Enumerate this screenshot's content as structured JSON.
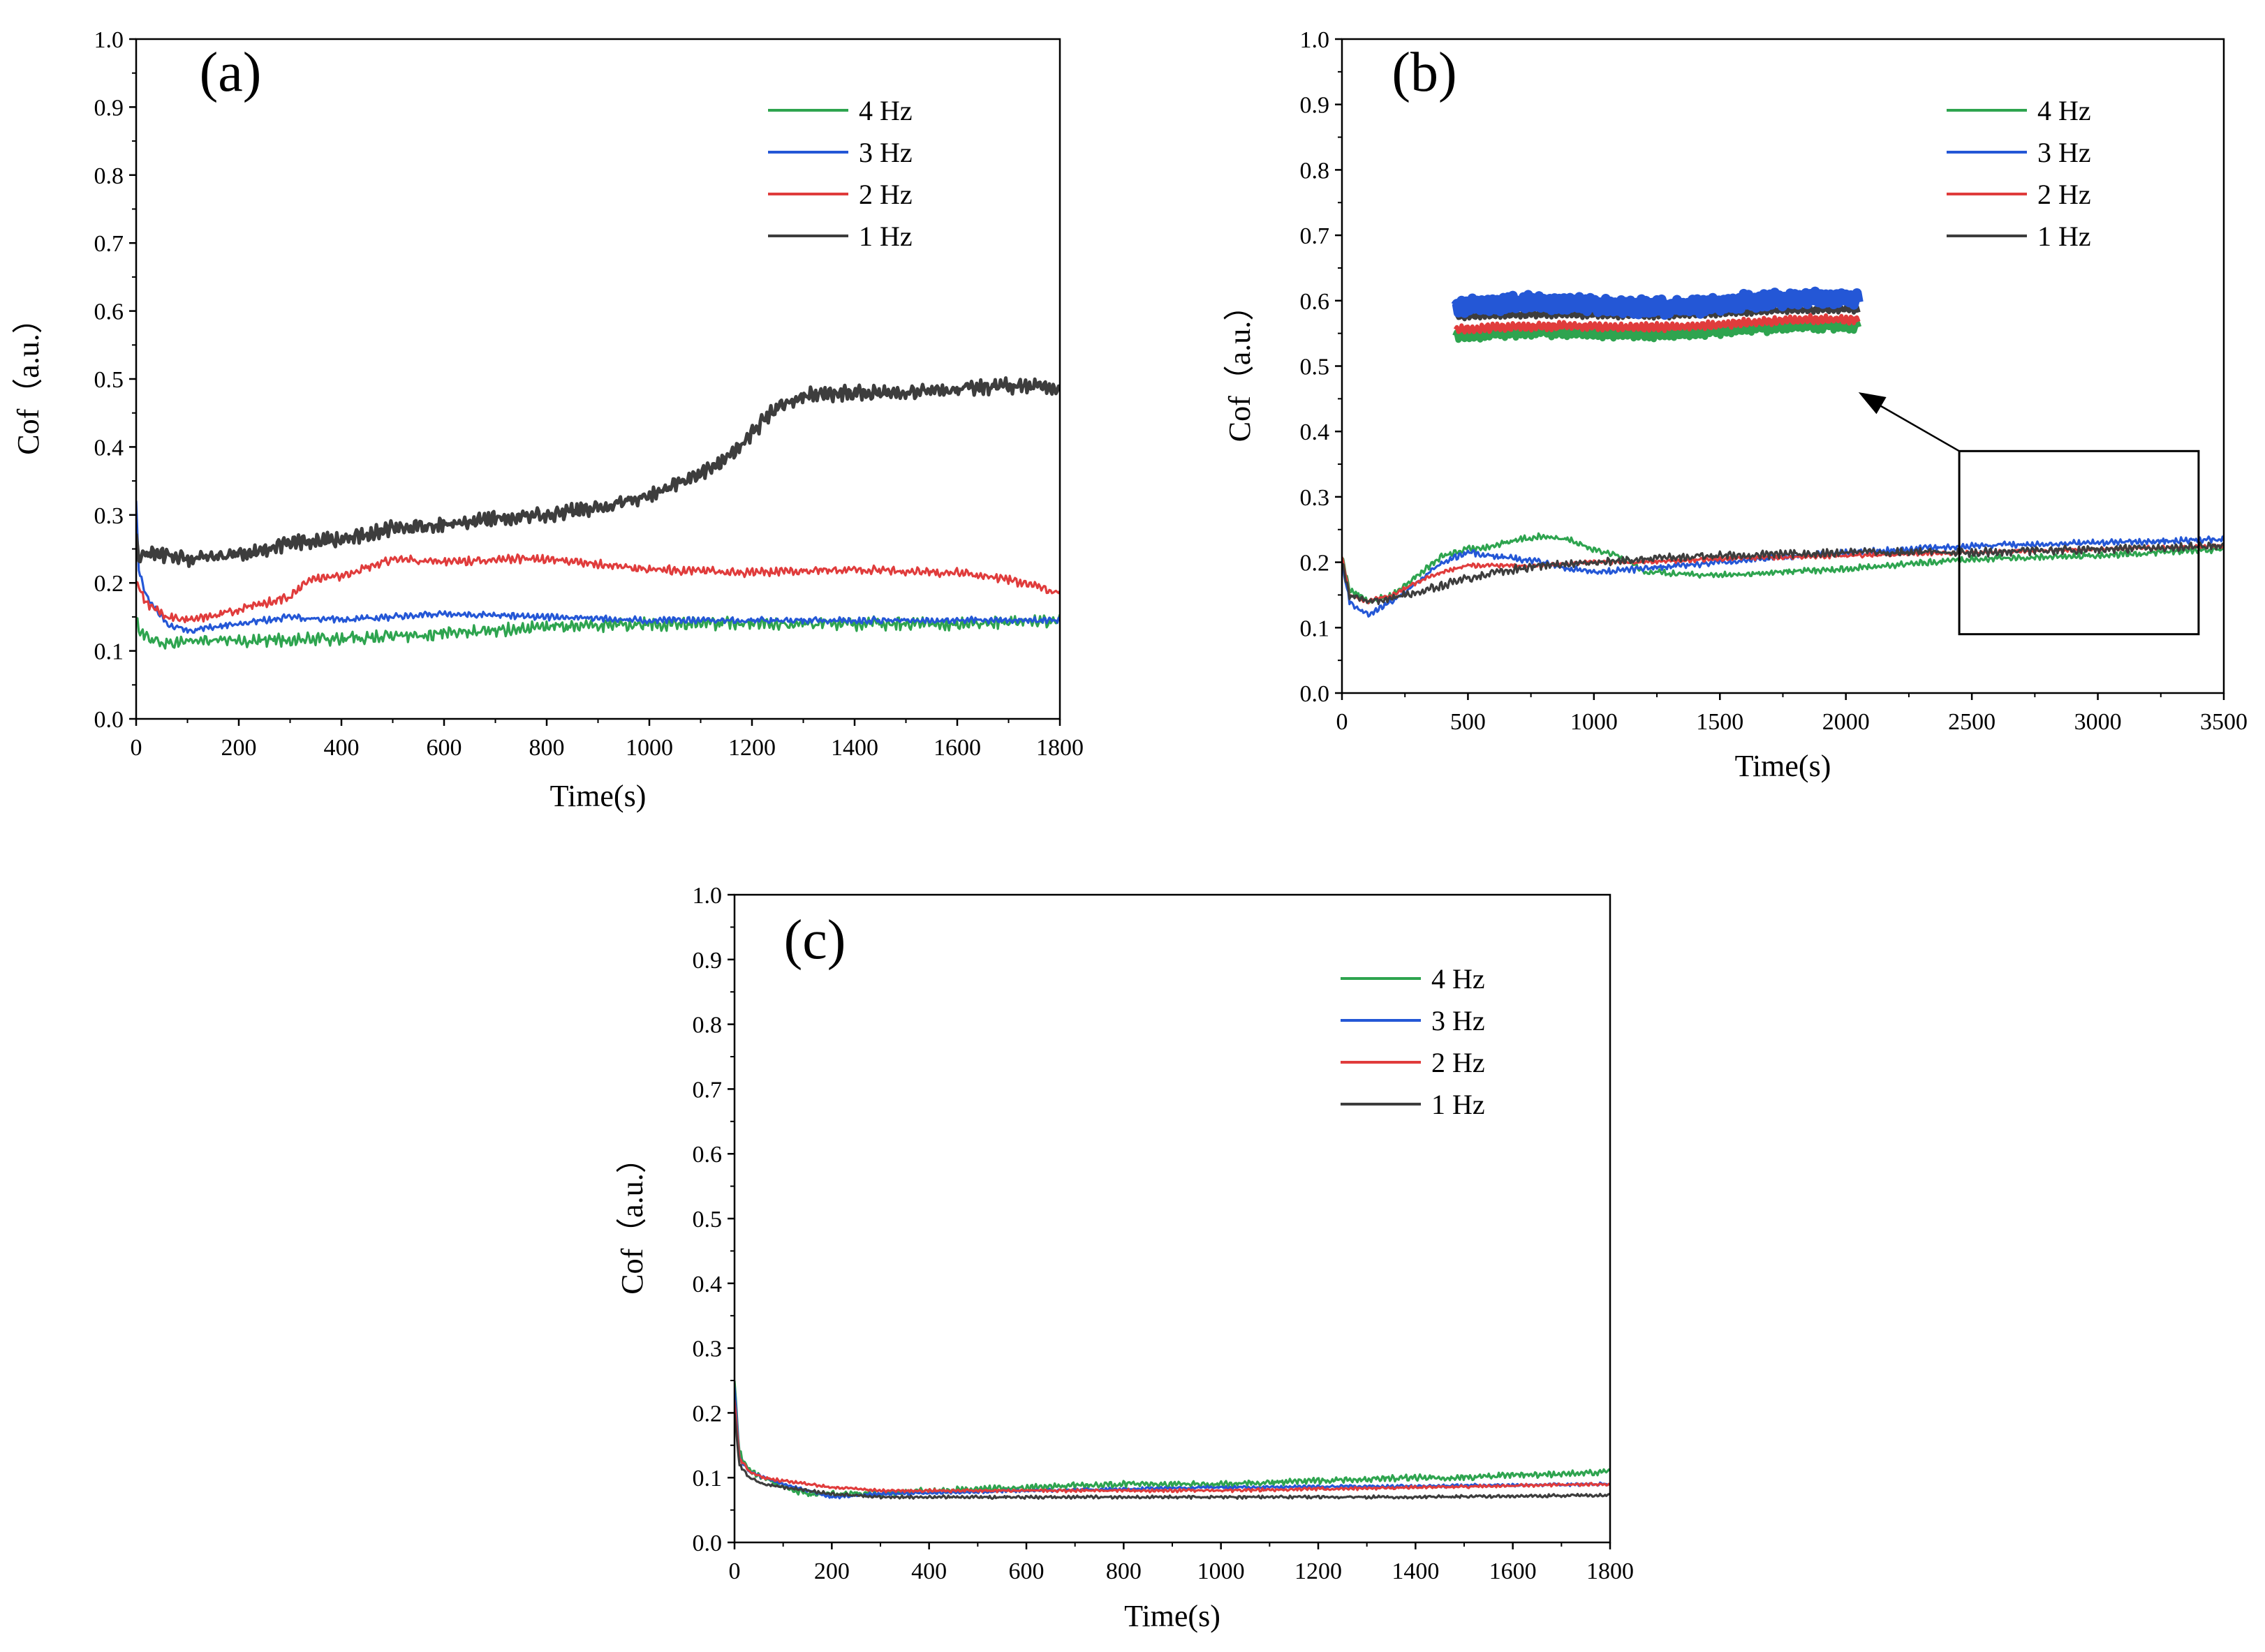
{
  "figure": {
    "colors": {
      "4 Hz": "#2ea44f",
      "3 Hz": "#2457d6",
      "2 Hz": "#e03c3c",
      "1 Hz": "#3d3d3d"
    }
  },
  "chart_data": [
    {
      "id": "a",
      "type": "line",
      "panel_label": "(a)",
      "title": "",
      "xlabel": "Time(s)",
      "ylabel": "Cof（a.u.）",
      "xlim": [
        0,
        1800
      ],
      "ylim": [
        0,
        1.0
      ],
      "xticks": [
        0,
        200,
        400,
        600,
        800,
        1000,
        1200,
        1400,
        1600,
        1800
      ],
      "xtick_labels": [
        "0",
        "200",
        "400",
        "600",
        "800",
        "1000",
        "1200",
        "1400",
        "1600",
        "1800"
      ],
      "yticks": [
        0.0,
        0.1,
        0.2,
        0.3,
        0.4,
        0.5,
        0.6,
        0.7,
        0.8,
        0.9,
        1.0
      ],
      "ytick_labels": [
        "0.0",
        "0.1",
        "0.2",
        "0.3",
        "0.4",
        "0.5",
        "0.6",
        "0.7",
        "0.8",
        "0.9",
        "1.0"
      ],
      "legend_position": "top-right",
      "series": [
        {
          "name": "4 Hz",
          "color": "#2ea44f",
          "noise": 0.006,
          "x": [
            0,
            20,
            60,
            100,
            200,
            400,
            600,
            800,
            1000,
            1200,
            1400,
            1600,
            1800
          ],
          "y": [
            0.14,
            0.12,
            0.11,
            0.115,
            0.115,
            0.118,
            0.125,
            0.135,
            0.14,
            0.14,
            0.14,
            0.14,
            0.145
          ]
        },
        {
          "name": "3 Hz",
          "color": "#2457d6",
          "noise": 0.003,
          "x": [
            0,
            5,
            20,
            60,
            100,
            150,
            200,
            300,
            400,
            600,
            800,
            1000,
            1200,
            1400,
            1800
          ],
          "y": [
            0.32,
            0.22,
            0.18,
            0.14,
            0.13,
            0.135,
            0.14,
            0.15,
            0.145,
            0.155,
            0.15,
            0.145,
            0.145,
            0.145,
            0.145
          ]
        },
        {
          "name": "2 Hz",
          "color": "#e03c3c",
          "noise": 0.004,
          "x": [
            0,
            20,
            60,
            100,
            200,
            300,
            340,
            400,
            500,
            600,
            700,
            800,
            1000,
            1200,
            1400,
            1600,
            1700,
            1800
          ],
          "y": [
            0.2,
            0.17,
            0.15,
            0.145,
            0.16,
            0.18,
            0.205,
            0.21,
            0.235,
            0.23,
            0.235,
            0.235,
            0.22,
            0.215,
            0.22,
            0.215,
            0.205,
            0.185
          ]
        },
        {
          "name": "1 Hz",
          "color": "#3d3d3d",
          "noise": 0.007,
          "x": [
            0,
            5,
            30,
            100,
            200,
            300,
            400,
            500,
            600,
            700,
            800,
            900,
            1000,
            1100,
            1150,
            1200,
            1250,
            1300,
            1400,
            1500,
            1600,
            1700,
            1800
          ],
          "y": [
            0.27,
            0.24,
            0.245,
            0.235,
            0.24,
            0.26,
            0.265,
            0.28,
            0.285,
            0.295,
            0.3,
            0.31,
            0.33,
            0.36,
            0.38,
            0.42,
            0.46,
            0.475,
            0.48,
            0.48,
            0.485,
            0.49,
            0.485
          ]
        }
      ]
    },
    {
      "id": "b",
      "type": "line",
      "panel_label": "(b)",
      "title": "",
      "xlabel": "Time(s)",
      "ylabel": "Cof（a.u.）",
      "xlim": [
        0,
        3500
      ],
      "ylim": [
        0,
        1.0
      ],
      "xticks": [
        0,
        500,
        1000,
        1500,
        2000,
        2500,
        3000,
        3500
      ],
      "xtick_labels": [
        "0",
        "500",
        "1000",
        "1500",
        "2000",
        "2500",
        "3000",
        "3500"
      ],
      "yticks": [
        0.0,
        0.1,
        0.2,
        0.3,
        0.4,
        0.5,
        0.6,
        0.7,
        0.8,
        0.9,
        1.0
      ],
      "ytick_labels": [
        "0.0",
        "0.1",
        "0.2",
        "0.3",
        "0.4",
        "0.5",
        "0.6",
        "0.7",
        "0.8",
        "0.9",
        "1.0"
      ],
      "legend_position": "top-right",
      "zoom_box": {
        "x_range": [
          2450,
          3400
        ],
        "y_range": [
          0.09,
          0.37
        ]
      },
      "inset": {
        "x_range": [
          450,
          2050
        ],
        "y_range": [
          0.53,
          0.62
        ]
      },
      "arrow": {
        "from": [
          2450,
          0.37
        ],
        "to": [
          2050,
          0.46
        ]
      },
      "series": [
        {
          "name": "4 Hz",
          "color": "#2ea44f",
          "noise": 0.003,
          "x": [
            0,
            30,
            100,
            200,
            300,
            400,
            500,
            600,
            700,
            800,
            900,
            1000,
            1100,
            1150,
            1200,
            1500,
            2000,
            2500,
            3000,
            3500
          ],
          "y": [
            0.21,
            0.16,
            0.14,
            0.15,
            0.18,
            0.21,
            0.22,
            0.225,
            0.235,
            0.24,
            0.235,
            0.22,
            0.21,
            0.2,
            0.185,
            0.18,
            0.19,
            0.205,
            0.21,
            0.22
          ]
        },
        {
          "name": "3 Hz",
          "color": "#2457d6",
          "noise": 0.003,
          "x": [
            0,
            30,
            100,
            200,
            300,
            400,
            500,
            600,
            700,
            800,
            900,
            1000,
            1200,
            1500,
            2000,
            2500,
            3000,
            3500
          ],
          "y": [
            0.2,
            0.14,
            0.12,
            0.14,
            0.17,
            0.2,
            0.215,
            0.21,
            0.205,
            0.2,
            0.19,
            0.185,
            0.19,
            0.2,
            0.215,
            0.225,
            0.23,
            0.235
          ]
        },
        {
          "name": "2 Hz",
          "color": "#e03c3c",
          "noise": 0.002,
          "x": [
            0,
            30,
            100,
            200,
            300,
            400,
            500,
            600,
            800,
            1000,
            1200,
            1500,
            2000,
            2500,
            3000,
            3500
          ],
          "y": [
            0.21,
            0.15,
            0.14,
            0.15,
            0.17,
            0.185,
            0.195,
            0.195,
            0.195,
            0.2,
            0.2,
            0.205,
            0.21,
            0.215,
            0.22,
            0.225
          ]
        },
        {
          "name": "1 Hz",
          "color": "#3d3d3d",
          "noise": 0.004,
          "x": [
            0,
            30,
            100,
            200,
            300,
            400,
            500,
            600,
            800,
            1000,
            1200,
            1500,
            2000,
            2500,
            3000,
            3500
          ],
          "y": [
            0.2,
            0.15,
            0.14,
            0.145,
            0.155,
            0.165,
            0.175,
            0.185,
            0.195,
            0.2,
            0.205,
            0.21,
            0.215,
            0.215,
            0.22,
            0.225
          ]
        }
      ],
      "inset_series": [
        {
          "name": "4 Hz",
          "color": "#2ea44f",
          "y": [
            0.545,
            0.56
          ],
          "noise": 0.006
        },
        {
          "name": "2 Hz",
          "color": "#e03c3c",
          "y": [
            0.555,
            0.57
          ],
          "noise": 0.005
        },
        {
          "name": "1 Hz",
          "color": "#3d3d3d",
          "y": [
            0.575,
            0.585
          ],
          "noise": 0.004
        },
        {
          "name": "3 Hz",
          "color": "#2457d6",
          "y": [
            0.59,
            0.6
          ],
          "noise": 0.009
        }
      ]
    },
    {
      "id": "c",
      "type": "line",
      "panel_label": "(c)",
      "title": "",
      "xlabel": "Time(s)",
      "ylabel": "Cof（a.u.）",
      "xlim": [
        0,
        1800
      ],
      "ylim": [
        0,
        1.0
      ],
      "xticks": [
        0,
        200,
        400,
        600,
        800,
        1000,
        1200,
        1400,
        1600,
        1800
      ],
      "xtick_labels": [
        "0",
        "200",
        "400",
        "600",
        "800",
        "1000",
        "1200",
        "1400",
        "1600",
        "1800"
      ],
      "yticks": [
        0.0,
        0.1,
        0.2,
        0.3,
        0.4,
        0.5,
        0.6,
        0.7,
        0.8,
        0.9,
        1.0
      ],
      "ytick_labels": [
        "0.0",
        "0.1",
        "0.2",
        "0.3",
        "0.4",
        "0.5",
        "0.6",
        "0.7",
        "0.8",
        "0.9",
        "1.0"
      ],
      "legend_position": "top-right",
      "series": [
        {
          "name": "4 Hz",
          "color": "#2ea44f",
          "noise": 0.003,
          "x": [
            0,
            10,
            30,
            60,
            100,
            150,
            200,
            300,
            400,
            600,
            800,
            1000,
            1200,
            1400,
            1500,
            1600,
            1700,
            1800
          ],
          "y": [
            0.25,
            0.14,
            0.11,
            0.1,
            0.085,
            0.075,
            0.075,
            0.075,
            0.08,
            0.085,
            0.09,
            0.09,
            0.095,
            0.1,
            0.1,
            0.105,
            0.105,
            0.11
          ]
        },
        {
          "name": "3 Hz",
          "color": "#2457d6",
          "noise": 0.0015,
          "x": [
            0,
            10,
            30,
            60,
            100,
            200,
            300,
            600,
            1000,
            1400,
            1800
          ],
          "y": [
            0.24,
            0.13,
            0.11,
            0.1,
            0.09,
            0.07,
            0.075,
            0.08,
            0.085,
            0.087,
            0.09
          ]
        },
        {
          "name": "2 Hz",
          "color": "#e03c3c",
          "noise": 0.0015,
          "x": [
            0,
            10,
            30,
            60,
            100,
            150,
            200,
            300,
            600,
            1000,
            1400,
            1800
          ],
          "y": [
            0.22,
            0.13,
            0.11,
            0.1,
            0.095,
            0.09,
            0.085,
            0.08,
            0.08,
            0.08,
            0.085,
            0.09
          ]
        },
        {
          "name": "1 Hz",
          "color": "#3d3d3d",
          "noise": 0.0015,
          "x": [
            0,
            10,
            30,
            60,
            100,
            200,
            300,
            600,
            1000,
            1400,
            1800
          ],
          "y": [
            0.2,
            0.12,
            0.1,
            0.09,
            0.085,
            0.075,
            0.07,
            0.07,
            0.07,
            0.07,
            0.073
          ]
        }
      ]
    }
  ]
}
